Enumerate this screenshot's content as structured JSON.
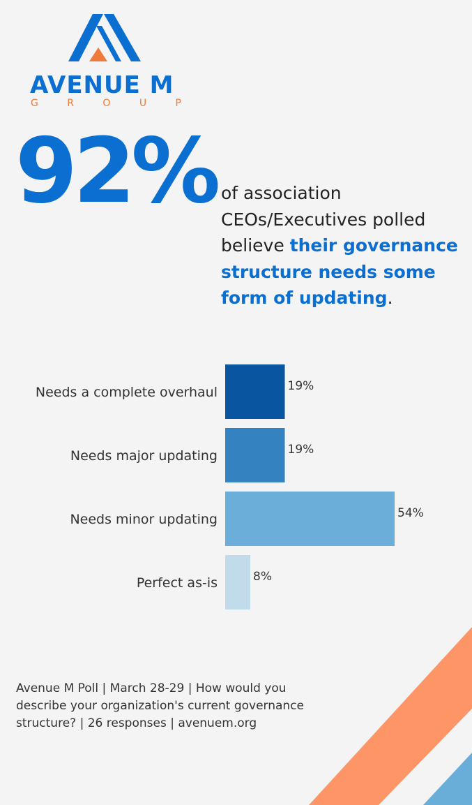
{
  "brand": {
    "name": "AVENUE M",
    "sub_letters": [
      "G",
      "R",
      "O",
      "U",
      "P"
    ],
    "primary_color": "#0a6fd0",
    "accent_color": "#f07a3a"
  },
  "headline": {
    "stat": "92%",
    "text_before": "of association CEOs/Executives polled believe ",
    "text_highlight": "their governance structure needs some form of updating",
    "text_after": "."
  },
  "chart_data": {
    "type": "bar",
    "orientation": "horizontal",
    "categories": [
      "Needs a complete overhaul",
      "Needs major updating",
      "Needs minor updating",
      "Perfect as-is"
    ],
    "values": [
      19,
      19,
      54,
      8
    ],
    "value_labels": [
      "19%",
      "19%",
      "54%",
      "8%"
    ],
    "colors": [
      "#0a559f",
      "#3582c0",
      "#6baed9",
      "#c1dbeb"
    ],
    "xlim": [
      0,
      100
    ],
    "grid": false,
    "legend": "none"
  },
  "footer": {
    "note": "Avenue M Poll | March 28-29 | How would you describe your organization's current governance structure? | 26 responses | avenuem.org"
  },
  "decoration": {
    "stripe_colors": [
      "#fd9566",
      "#69aed8"
    ]
  }
}
